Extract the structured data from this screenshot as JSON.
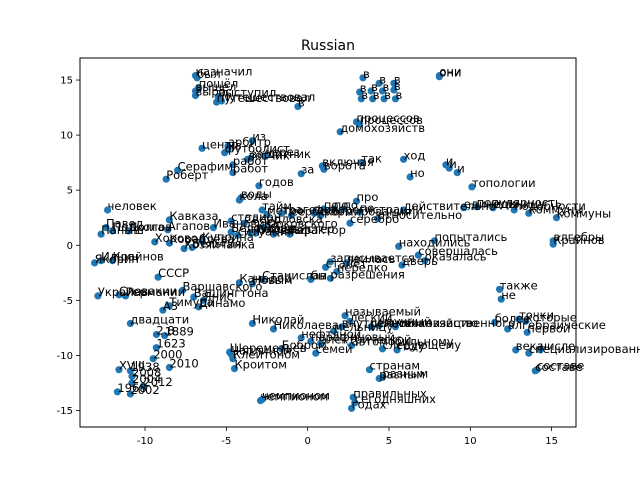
{
  "chart_data": {
    "type": "scatter",
    "title": "Russian",
    "xlabel": "",
    "ylabel": "",
    "xlim": [
      -14,
      16.5
    ],
    "ylim": [
      -16.5,
      17
    ],
    "xticks": [
      -10,
      -5,
      0,
      5,
      10,
      15
    ],
    "yticks": [
      -15,
      -10,
      -5,
      0,
      5,
      10,
      15
    ],
    "grid": false,
    "point_color": "#1f77b4",
    "points": [
      {
        "x": -6.8,
        "y": 15.2,
        "label": "был"
      },
      {
        "x": -6.9,
        "y": 15.4,
        "label": "назначил"
      },
      {
        "x": -6.7,
        "y": 14.3,
        "label": "пошёл"
      },
      {
        "x": -6.9,
        "y": 14.0,
        "label": "вышел"
      },
      {
        "x": -6.9,
        "y": 13.6,
        "label": "вырос"
      },
      {
        "x": -5.5,
        "y": 13.5,
        "label": "выступил"
      },
      {
        "x": -5.3,
        "y": 13.1,
        "label": "путешествовал"
      },
      {
        "x": -5.6,
        "y": 13.0,
        "label": "путешествовал"
      },
      {
        "x": -0.6,
        "y": 12.6,
        "label": "в"
      },
      {
        "x": 8.1,
        "y": 15.4,
        "label": "они"
      },
      {
        "x": 8.1,
        "y": 15.3,
        "label": "они"
      },
      {
        "x": 3.4,
        "y": 15.2,
        "label": "в"
      },
      {
        "x": 4.4,
        "y": 14.7,
        "label": "в"
      },
      {
        "x": 5.3,
        "y": 14.7,
        "label": "в"
      },
      {
        "x": 3.2,
        "y": 13.9,
        "label": "в"
      },
      {
        "x": 3.9,
        "y": 14.0,
        "label": "в"
      },
      {
        "x": 4.6,
        "y": 14.0,
        "label": "в"
      },
      {
        "x": 5.3,
        "y": 14.1,
        "label": "в"
      },
      {
        "x": 3.3,
        "y": 13.3,
        "label": "в"
      },
      {
        "x": 4.0,
        "y": 13.3,
        "label": "в"
      },
      {
        "x": 4.7,
        "y": 13.3,
        "label": "в"
      },
      {
        "x": 5.4,
        "y": 13.3,
        "label": "в"
      },
      {
        "x": 3.0,
        "y": 11.2,
        "label": "процессов"
      },
      {
        "x": 3.2,
        "y": 11.0,
        "label": "процессов"
      },
      {
        "x": 2.0,
        "y": 10.3,
        "label": "домохозяйств"
      },
      {
        "x": -4.9,
        "y": 9.0,
        "label": "арбитр"
      },
      {
        "x": -3.4,
        "y": 9.5,
        "label": "из"
      },
      {
        "x": -6.5,
        "y": 8.8,
        "label": "центр"
      },
      {
        "x": -4.9,
        "y": 8.7,
        "label": "из"
      },
      {
        "x": -2.6,
        "y": 8.1,
        "label": "через"
      },
      {
        "x": -5.1,
        "y": 8.4,
        "label": "футболист"
      },
      {
        "x": -3.5,
        "y": 7.9,
        "label": "защитник"
      },
      {
        "x": -3.7,
        "y": 7.8,
        "label": "лётчик"
      },
      {
        "x": -4.6,
        "y": 7.3,
        "label": "работ"
      },
      {
        "x": -8.0,
        "y": 6.8,
        "label": "Серафим"
      },
      {
        "x": -8.7,
        "y": 6.0,
        "label": "Роберт"
      },
      {
        "x": -4.6,
        "y": 6.6,
        "label": "работ"
      },
      {
        "x": -0.4,
        "y": 6.5,
        "label": "за"
      },
      {
        "x": 0.9,
        "y": 7.2,
        "label": "включая"
      },
      {
        "x": 1.0,
        "y": 6.9,
        "label": "ворота"
      },
      {
        "x": 3.3,
        "y": 7.5,
        "label": "так"
      },
      {
        "x": 5.9,
        "y": 7.8,
        "label": "ход"
      },
      {
        "x": 8.5,
        "y": 7.3,
        "label": "и"
      },
      {
        "x": 8.7,
        "y": 7.0,
        "label": "и"
      },
      {
        "x": 9.2,
        "y": 6.6,
        "label": "и"
      },
      {
        "x": 6.3,
        "y": 6.2,
        "label": "но"
      },
      {
        "x": 10.1,
        "y": 5.3,
        "label": "топологии"
      },
      {
        "x": -3.0,
        "y": 5.4,
        "label": "годов"
      },
      {
        "x": -4.2,
        "y": 4.1,
        "label": "кола"
      },
      {
        "x": -4.1,
        "y": 4.3,
        "label": "воды"
      },
      {
        "x": 1.0,
        "y": 3.3,
        "label": "по"
      },
      {
        "x": 3.0,
        "y": 4.0,
        "label": "про"
      },
      {
        "x": 1.6,
        "y": 3.3,
        "label": "по"
      },
      {
        "x": 2.2,
        "y": 3.3,
        "label": "по"
      },
      {
        "x": 3.2,
        "y": 3.0,
        "label": "по"
      },
      {
        "x": -2.8,
        "y": 3.2,
        "label": "тайм"
      },
      {
        "x": -4.7,
        "y": 2.2,
        "label": "стадион"
      },
      {
        "x": -2.5,
        "y": 2.8,
        "label": "метро"
      },
      {
        "x": -1.6,
        "y": 2.9,
        "label": "трагедии"
      },
      {
        "x": -1.0,
        "y": 2.7,
        "label": "сербского"
      },
      {
        "x": 0.4,
        "y": 2.9,
        "label": "фоторегистрации"
      },
      {
        "x": 0.8,
        "y": 2.7,
        "label": "формирования"
      },
      {
        "x": 2.6,
        "y": 2.0,
        "label": "серебро"
      },
      {
        "x": 4.3,
        "y": 2.4,
        "label": "относительно"
      },
      {
        "x": 5.9,
        "y": 3.2,
        "label": "действительно"
      },
      {
        "x": 9.6,
        "y": 3.4,
        "label": "единицы"
      },
      {
        "x": 10.4,
        "y": 3.5,
        "label": "популярность"
      },
      {
        "x": 11.4,
        "y": 3.4,
        "label": "единицу"
      },
      {
        "x": 12.7,
        "y": 3.2,
        "label": "подобности"
      },
      {
        "x": 13.6,
        "y": 2.9,
        "label": "коммуны"
      },
      {
        "x": 15.3,
        "y": 2.5,
        "label": "коммуны"
      },
      {
        "x": -12.3,
        "y": 3.2,
        "label": "человек"
      },
      {
        "x": -8.5,
        "y": 2.3,
        "label": "Кавказа"
      },
      {
        "x": -8.6,
        "y": 1.4,
        "label": "Агапов"
      },
      {
        "x": -12.4,
        "y": 1.6,
        "label": "Павел"
      },
      {
        "x": -12.0,
        "y": 1.3,
        "label": "Подкола"
      },
      {
        "x": -12.7,
        "y": 1.0,
        "label": "Паныш"
      },
      {
        "x": -11.0,
        "y": 1.3,
        "label": "Долгов"
      },
      {
        "x": -5.8,
        "y": 1.6,
        "label": "Ивановича"
      },
      {
        "x": -4.7,
        "y": 1.2,
        "label": "Белоусова"
      },
      {
        "x": -3.9,
        "y": 2.0,
        "label": "Свердловска"
      },
      {
        "x": -1.1,
        "y": 1.0,
        "label": "Гера"
      },
      {
        "x": -4.3,
        "y": 0.9,
        "label": "ситуация"
      },
      {
        "x": -3.2,
        "y": 1.1,
        "label": "Рябова"
      },
      {
        "x": -2.7,
        "y": 1.6,
        "label": "Юрковского"
      },
      {
        "x": -8.5,
        "y": 0.2,
        "label": "Кораблёва"
      },
      {
        "x": -7.1,
        "y": -0.2,
        "label": "Бельгия"
      },
      {
        "x": -6.5,
        "y": 0.4,
        "label": "Куприна"
      },
      {
        "x": -7.6,
        "y": -0.3,
        "label": "Хозяйчанка"
      },
      {
        "x": -3.5,
        "y": 1.1,
        "label": "гроссмейстер"
      },
      {
        "x": -2.1,
        "y": 1.0,
        "label": "сельфактор"
      },
      {
        "x": -9.4,
        "y": 0.3,
        "label": "Хоровод"
      },
      {
        "x": 1.4,
        "y": -1.5,
        "label": "записывается"
      },
      {
        "x": 2.4,
        "y": -1.6,
        "label": "явилась"
      },
      {
        "x": 5.6,
        "y": -0.1,
        "label": "находились"
      },
      {
        "x": 6.8,
        "y": -0.9,
        "label": "совершалась"
      },
      {
        "x": 7.2,
        "y": -1.4,
        "label": "оказалась"
      },
      {
        "x": 7.8,
        "y": 0.4,
        "label": "попытались"
      },
      {
        "x": 5.8,
        "y": -1.8,
        "label": "дверь"
      },
      {
        "x": 15.1,
        "y": 0.4,
        "label": "алгебры"
      },
      {
        "x": 15.1,
        "y": 0.1,
        "label": "Крайнов"
      },
      {
        "x": -13.1,
        "y": -1.6,
        "label": "Якорин"
      },
      {
        "x": -12.7,
        "y": -1.4,
        "label": "Ильин"
      },
      {
        "x": -12.0,
        "y": -1.4,
        "label": "Крайнов"
      },
      {
        "x": -9.2,
        "y": -2.9,
        "label": "СССР"
      },
      {
        "x": 1.1,
        "y": -2.0,
        "label": "станет"
      },
      {
        "x": 1.8,
        "y": -2.4,
        "label": "нередко"
      },
      {
        "x": 0.2,
        "y": -3.1,
        "label": "бы"
      },
      {
        "x": 1.4,
        "y": -3.0,
        "label": "разрешения"
      },
      {
        "x": -2.8,
        "y": -3.1,
        "label": "Станислав"
      },
      {
        "x": -3.4,
        "y": -3.5,
        "label": "Новым"
      },
      {
        "x": -4.2,
        "y": -3.4,
        "label": "Канадой"
      },
      {
        "x": -12.9,
        "y": -4.6,
        "label": "Украины"
      },
      {
        "x": -11.6,
        "y": -4.5,
        "label": "Словакии"
      },
      {
        "x": -11.2,
        "y": -4.6,
        "label": "Германии"
      },
      {
        "x": -7.7,
        "y": -4.1,
        "label": "Варшавского"
      },
      {
        "x": -7.0,
        "y": -4.7,
        "label": "Вашингтона"
      },
      {
        "x": -6.4,
        "y": -5.0,
        "label": "Янис"
      },
      {
        "x": -8.5,
        "y": -5.5,
        "label": "Тимура"
      },
      {
        "x": -8.9,
        "y": -5.9,
        "label": "А3"
      },
      {
        "x": -6.7,
        "y": -5.6,
        "label": "Динамо"
      },
      {
        "x": 2.3,
        "y": -6.4,
        "label": "называемый"
      },
      {
        "x": 2.6,
        "y": -6.9,
        "label": "лёгкий"
      },
      {
        "x": 2.1,
        "y": -7.4,
        "label": "внутренний"
      },
      {
        "x": 3.9,
        "y": -7.4,
        "label": "сельскохозяйственного"
      },
      {
        "x": 4.4,
        "y": -7.3,
        "label": "научный"
      },
      {
        "x": 1.6,
        "y": -7.8,
        "label": "мельницу"
      },
      {
        "x": 5.4,
        "y": -7.4,
        "label": "механизацию"
      },
      {
        "x": -10.9,
        "y": -7.1,
        "label": "двадцати"
      },
      {
        "x": -3.4,
        "y": -7.1,
        "label": "Николай"
      },
      {
        "x": -2.1,
        "y": -7.6,
        "label": "Николаева"
      },
      {
        "x": -0.4,
        "y": -8.4,
        "label": "нефтяной"
      },
      {
        "x": 0.2,
        "y": -8.7,
        "label": "парафиновый"
      },
      {
        "x": 0.8,
        "y": -8.9,
        "label": "электрической"
      },
      {
        "x": 2.7,
        "y": -9.1,
        "label": "автомобильному"
      },
      {
        "x": 4.6,
        "y": -9.4,
        "label": "следующему"
      },
      {
        "x": 5.5,
        "y": -9.5,
        "label": "году"
      },
      {
        "x": 11.5,
        "y": -7.0,
        "label": "более"
      },
      {
        "x": 12.3,
        "y": -7.6,
        "label": "алгебраические"
      },
      {
        "x": 13.5,
        "y": -7.9,
        "label": "первой"
      },
      {
        "x": 13.0,
        "y": -6.7,
        "label": "точки"
      },
      {
        "x": 13.4,
        "y": -6.9,
        "label": "которые"
      },
      {
        "x": 14.3,
        "y": -9.5,
        "label": "числе"
      },
      {
        "x": 12.8,
        "y": -9.5,
        "label": "века"
      },
      {
        "x": 13.6,
        "y": -9.8,
        "label": "специализированные"
      },
      {
        "x": 11.9,
        "y": -4.9,
        "label": "не"
      },
      {
        "x": 11.8,
        "y": -4.0,
        "label": "также"
      },
      {
        "x": -9.3,
        "y": -8.1,
        "label": "2.8"
      },
      {
        "x": -8.8,
        "y": -8.2,
        "label": "1889"
      },
      {
        "x": -9.3,
        "y": -9.3,
        "label": "1623"
      },
      {
        "x": -9.5,
        "y": -10.3,
        "label": "2000"
      },
      {
        "x": -8.5,
        "y": -11.1,
        "label": "2010"
      },
      {
        "x": -11.6,
        "y": -11.3,
        "label": "XVIII"
      },
      {
        "x": -10.9,
        "y": -11.4,
        "label": "1938"
      },
      {
        "x": -10.8,
        "y": -11.9,
        "label": "2008"
      },
      {
        "x": -10.8,
        "y": -12.5,
        "label": "2004"
      },
      {
        "x": -10.1,
        "y": -12.8,
        "label": "2012"
      },
      {
        "x": -11.7,
        "y": -13.3,
        "label": "1968"
      },
      {
        "x": -10.9,
        "y": -13.5,
        "label": "2002"
      },
      {
        "x": -4.8,
        "y": -9.7,
        "label": "Шереметьев"
      },
      {
        "x": -4.7,
        "y": -9.9,
        "label": "Чаплином"
      },
      {
        "x": -4.6,
        "y": -10.3,
        "label": "Клейтоном"
      },
      {
        "x": -4.5,
        "y": -11.2,
        "label": "Кроитом"
      },
      {
        "x": -1.6,
        "y": -9.4,
        "label": "Бобром"
      },
      {
        "x": 0.5,
        "y": -9.8,
        "label": "семей"
      },
      {
        "x": 3.8,
        "y": -11.3,
        "label": "странам"
      },
      {
        "x": 4.4,
        "y": -12.1,
        "label": "разным"
      },
      {
        "x": 4.6,
        "y": -12.0,
        "label": "разным"
      },
      {
        "x": -2.9,
        "y": -14.1,
        "label": "чемпионом"
      },
      {
        "x": -2.8,
        "y": -14.0,
        "label": "чемпионом"
      },
      {
        "x": 2.8,
        "y": -13.8,
        "label": "правильных"
      },
      {
        "x": 2.9,
        "y": -14.3,
        "label": "сегодняшних"
      },
      {
        "x": 2.7,
        "y": -14.8,
        "label": "годах"
      },
      {
        "x": 14.0,
        "y": -11.4,
        "label": "составе"
      },
      {
        "x": 14.1,
        "y": -11.3,
        "label": "составе"
      }
    ]
  }
}
